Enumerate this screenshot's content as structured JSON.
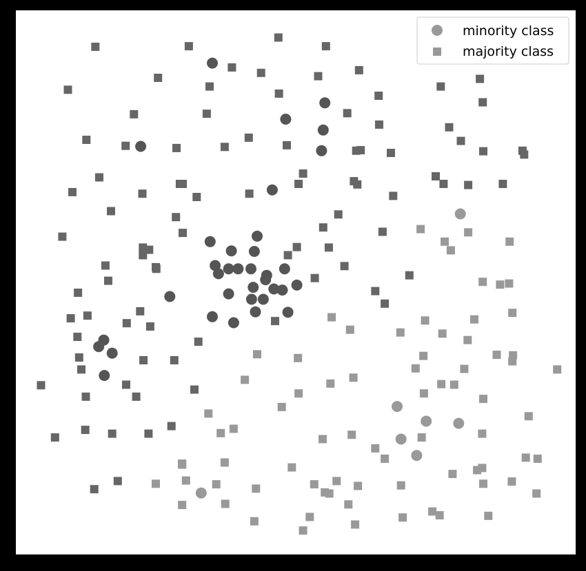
{
  "chart_data": {
    "type": "scatter",
    "title": "",
    "xlabel": "",
    "ylabel": "",
    "xlim": [
      0,
      100
    ],
    "ylim": [
      0,
      100
    ],
    "grid": false,
    "ticks_visible": false,
    "legend_placement": "top-right",
    "series": [
      {
        "name": "minority class",
        "marker": "circle",
        "color": "#555555",
        "points": [
          [
            35.1,
            90.3
          ],
          [
            55.2,
            83.0
          ],
          [
            48.2,
            80.0
          ],
          [
            54.9,
            78.0
          ],
          [
            22.3,
            75.0
          ],
          [
            54.6,
            74.2
          ],
          [
            45.8,
            67.0
          ],
          [
            43.1,
            58.5
          ],
          [
            34.7,
            57.5
          ],
          [
            38.5,
            55.8
          ],
          [
            42.6,
            55.7
          ],
          [
            35.6,
            53.1
          ],
          [
            38.0,
            52.5
          ],
          [
            39.7,
            52.5
          ],
          [
            36.2,
            51.6
          ],
          [
            42.0,
            52.5
          ],
          [
            48.0,
            52.5
          ],
          [
            44.8,
            51.3
          ],
          [
            44.6,
            50.5
          ],
          [
            50.2,
            49.5
          ],
          [
            42.4,
            49.1
          ],
          [
            46.1,
            48.8
          ],
          [
            47.6,
            48.6
          ],
          [
            38.0,
            47.9
          ],
          [
            27.5,
            47.4
          ],
          [
            42.1,
            46.9
          ],
          [
            44.2,
            46.9
          ],
          [
            42.8,
            44.6
          ],
          [
            48.6,
            44.5
          ],
          [
            35.1,
            43.7
          ],
          [
            38.9,
            42.6
          ],
          [
            15.7,
            39.4
          ],
          [
            14.8,
            38.2
          ],
          [
            17.2,
            37.0
          ],
          [
            15.8,
            32.9
          ]
        ]
      },
      {
        "name": "minority class",
        "marker": "circle",
        "color": "#999999",
        "points": [
          [
            79.4,
            62.6
          ],
          [
            68.1,
            27.2
          ],
          [
            73.3,
            24.5
          ],
          [
            79.1,
            24.1
          ],
          [
            68.8,
            21.2
          ],
          [
            71.6,
            18.2
          ],
          [
            33.1,
            11.3
          ]
        ]
      },
      {
        "name": "majority class",
        "marker": "square",
        "color": "#666666",
        "points": [
          [
            14.2,
            93.3
          ],
          [
            30.9,
            93.4
          ],
          [
            46.9,
            95.0
          ],
          [
            55.4,
            93.4
          ],
          [
            38.6,
            89.5
          ],
          [
            43.8,
            88.5
          ],
          [
            61.3,
            89.0
          ],
          [
            54.0,
            87.9
          ],
          [
            25.4,
            87.6
          ],
          [
            34.6,
            86.0
          ],
          [
            9.3,
            85.4
          ],
          [
            47.0,
            84.7
          ],
          [
            64.8,
            84.3
          ],
          [
            75.9,
            86.0
          ],
          [
            82.9,
            87.4
          ],
          [
            83.4,
            83.1
          ],
          [
            21.1,
            80.9
          ],
          [
            34.1,
            81.0
          ],
          [
            59.2,
            81.1
          ],
          [
            64.9,
            79.0
          ],
          [
            77.4,
            78.5
          ],
          [
            12.6,
            76.2
          ],
          [
            19.6,
            75.1
          ],
          [
            28.7,
            74.7
          ],
          [
            37.3,
            74.9
          ],
          [
            41.6,
            76.6
          ],
          [
            48.4,
            75.2
          ],
          [
            60.8,
            74.2
          ],
          [
            61.6,
            74.3
          ],
          [
            67.0,
            73.8
          ],
          [
            79.5,
            76.0
          ],
          [
            83.5,
            74.1
          ],
          [
            90.5,
            74.2
          ],
          [
            90.8,
            73.5
          ],
          [
            14.9,
            69.3
          ],
          [
            51.3,
            70.0
          ],
          [
            29.3,
            68.1
          ],
          [
            29.8,
            68.1
          ],
          [
            50.5,
            68.1
          ],
          [
            60.4,
            68.6
          ],
          [
            61.0,
            68.0
          ],
          [
            75.0,
            69.5
          ],
          [
            76.4,
            68.1
          ],
          [
            80.8,
            67.9
          ],
          [
            87.0,
            68.1
          ],
          [
            10.1,
            66.6
          ],
          [
            22.6,
            66.3
          ],
          [
            32.3,
            65.7
          ],
          [
            41.7,
            66.3
          ],
          [
            67.4,
            65.9
          ],
          [
            17.0,
            63.1
          ],
          [
            28.6,
            62.0
          ],
          [
            57.6,
            62.5
          ],
          [
            54.9,
            60.1
          ],
          [
            8.3,
            58.4
          ],
          [
            29.8,
            59.1
          ],
          [
            65.5,
            59.3
          ],
          [
            22.7,
            56.4
          ],
          [
            50.2,
            56.5
          ],
          [
            55.9,
            56.4
          ],
          [
            23.8,
            56.0
          ],
          [
            48.6,
            55.0
          ],
          [
            22.7,
            55.0
          ],
          [
            25.0,
            52.8
          ],
          [
            16.0,
            53.1
          ],
          [
            25.1,
            52.5
          ],
          [
            58.7,
            53.0
          ],
          [
            16.5,
            50.3
          ],
          [
            53.4,
            50.8
          ],
          [
            70.3,
            51.3
          ],
          [
            11.1,
            48.1
          ],
          [
            64.2,
            48.4
          ],
          [
            22.2,
            44.7
          ],
          [
            65.9,
            46.1
          ],
          [
            9.8,
            43.4
          ],
          [
            12.8,
            43.9
          ],
          [
            19.8,
            42.5
          ],
          [
            46.3,
            42.9
          ],
          [
            24.0,
            41.9
          ],
          [
            11.0,
            40.0
          ],
          [
            32.6,
            39.1
          ],
          [
            11.3,
            36.2
          ],
          [
            22.8,
            35.7
          ],
          [
            28.3,
            35.7
          ],
          [
            11.7,
            34.0
          ],
          [
            4.5,
            31.1
          ],
          [
            19.7,
            31.2
          ],
          [
            31.9,
            30.3
          ],
          [
            12.5,
            29.0
          ],
          [
            21.5,
            29.0
          ],
          [
            7.0,
            21.5
          ],
          [
            12.4,
            22.9
          ],
          [
            17.2,
            22.2
          ],
          [
            23.7,
            22.2
          ],
          [
            27.8,
            23.6
          ],
          [
            14.0,
            12.0
          ],
          [
            18.2,
            13.5
          ]
        ]
      },
      {
        "name": "majority class",
        "marker": "square",
        "color": "#999999",
        "points": [
          [
            72.3,
            59.8
          ],
          [
            80.8,
            59.2
          ],
          [
            76.6,
            57.5
          ],
          [
            88.2,
            57.5
          ],
          [
            77.7,
            55.9
          ],
          [
            83.4,
            50.1
          ],
          [
            86.5,
            49.6
          ],
          [
            88.1,
            49.8
          ],
          [
            88.7,
            44.4
          ],
          [
            56.4,
            43.6
          ],
          [
            73.1,
            43.0
          ],
          [
            81.9,
            43.2
          ],
          [
            59.7,
            41.3
          ],
          [
            68.7,
            40.8
          ],
          [
            76.2,
            40.6
          ],
          [
            80.7,
            39.4
          ],
          [
            43.1,
            36.8
          ],
          [
            50.4,
            36.1
          ],
          [
            72.8,
            36.5
          ],
          [
            85.9,
            36.7
          ],
          [
            88.8,
            36.6
          ],
          [
            88.7,
            35.5
          ],
          [
            71.4,
            34.2
          ],
          [
            80.1,
            34.1
          ],
          [
            96.7,
            34.0
          ],
          [
            40.9,
            32.1
          ],
          [
            60.3,
            32.5
          ],
          [
            56.2,
            31.4
          ],
          [
            78.3,
            31.2
          ],
          [
            76.0,
            31.3
          ],
          [
            50.5,
            29.6
          ],
          [
            72.9,
            29.6
          ],
          [
            83.5,
            28.6
          ],
          [
            47.5,
            27.1
          ],
          [
            34.4,
            25.9
          ],
          [
            91.6,
            25.4
          ],
          [
            38.9,
            23.1
          ],
          [
            36.6,
            22.3
          ],
          [
            60.0,
            22.0
          ],
          [
            83.3,
            22.2
          ],
          [
            54.8,
            21.2
          ],
          [
            72.5,
            21.5
          ],
          [
            64.2,
            19.5
          ],
          [
            65.9,
            17.6
          ],
          [
            91.1,
            17.8
          ],
          [
            93.2,
            17.6
          ],
          [
            29.7,
            16.7
          ],
          [
            29.7,
            16.5
          ],
          [
            37.3,
            16.9
          ],
          [
            49.3,
            16.0
          ],
          [
            83.3,
            15.9
          ],
          [
            82.4,
            15.5
          ],
          [
            78.0,
            14.8
          ],
          [
            57.3,
            13.5
          ],
          [
            30.4,
            13.6
          ],
          [
            88.6,
            13.4
          ],
          [
            25.0,
            13.0
          ],
          [
            35.8,
            12.9
          ],
          [
            53.3,
            12.9
          ],
          [
            61.1,
            12.6
          ],
          [
            68.8,
            12.7
          ],
          [
            83.5,
            13.0
          ],
          [
            42.9,
            12.1
          ],
          [
            55.2,
            11.4
          ],
          [
            56.0,
            11.2
          ],
          [
            93.0,
            11.2
          ],
          [
            29.7,
            9.1
          ],
          [
            37.4,
            9.3
          ],
          [
            59.4,
            9.2
          ],
          [
            74.4,
            7.9
          ],
          [
            52.5,
            6.9
          ],
          [
            42.6,
            6.1
          ],
          [
            75.7,
            7.2
          ],
          [
            84.4,
            7.1
          ],
          [
            69.1,
            6.8
          ],
          [
            51.3,
            4.4
          ],
          [
            60.6,
            5.5
          ]
        ]
      }
    ]
  }
}
